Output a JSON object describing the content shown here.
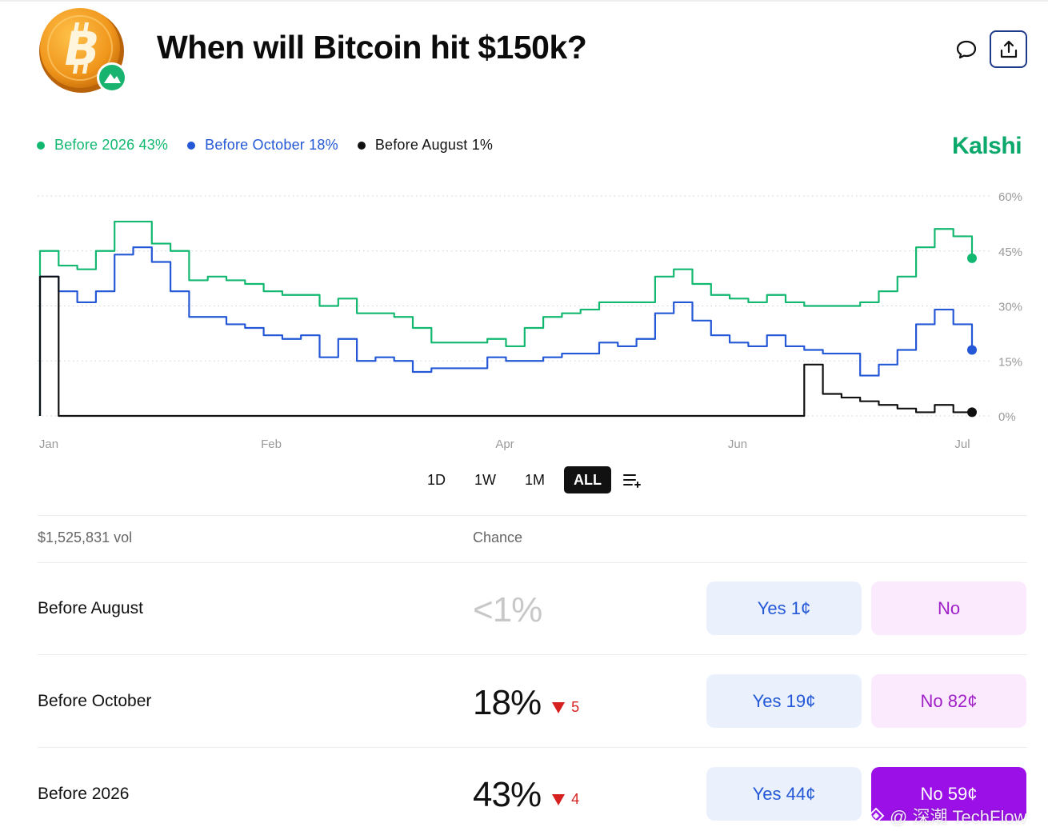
{
  "header": {
    "title": "When will Bitcoin hit $150k?",
    "logo_icon": "bitcoin-coin-icon",
    "badge_icon": "mountain-badge-icon",
    "comment_icon": "comment-bubble-icon",
    "share_icon": "share-upload-icon"
  },
  "brand": {
    "name": "Kalshi",
    "color": "#0aa86a"
  },
  "legend": [
    {
      "label": "Before 2026 43%",
      "color": "#12b870"
    },
    {
      "label": "Before October 18%",
      "color": "#2458d6"
    },
    {
      "label": "Before August 1%",
      "color": "#111111"
    }
  ],
  "chart_data": {
    "type": "line",
    "x_tick_labels": [
      "Jan",
      "Feb",
      "Apr",
      "Jun",
      "Jul"
    ],
    "y_tick_labels": [
      "60%",
      "45%",
      "30%",
      "15%",
      "0%"
    ],
    "ylim": [
      0,
      60
    ],
    "grid": "horizontal-dotted",
    "y_axis_position": "right",
    "series": [
      {
        "name": "Before 2026",
        "color": "#12b870",
        "x": [
          0,
          2,
          4,
          6,
          8,
          10,
          12,
          14,
          16,
          18,
          20,
          22,
          24,
          26,
          28,
          30,
          32,
          34,
          36,
          38,
          40,
          42,
          44,
          46,
          48,
          50,
          52,
          54,
          56,
          58,
          60,
          62,
          64,
          66,
          68,
          70,
          72,
          74,
          76,
          78,
          80,
          82,
          84,
          86,
          88,
          90,
          92,
          94,
          96,
          98,
          100
        ],
        "values": [
          45,
          41,
          40,
          45,
          53,
          53,
          47,
          45,
          37,
          38,
          37,
          36,
          34,
          33,
          33,
          30,
          32,
          28,
          28,
          27,
          24,
          20,
          20,
          20,
          21,
          19,
          24,
          27,
          28,
          29,
          31,
          31,
          31,
          38,
          40,
          36,
          33,
          32,
          31,
          33,
          31,
          30,
          30,
          30,
          31,
          34,
          38,
          46,
          51,
          49,
          43
        ]
      },
      {
        "name": "Before October",
        "color": "#2458d6",
        "x": [
          0,
          2,
          4,
          6,
          8,
          10,
          12,
          14,
          16,
          18,
          20,
          22,
          24,
          26,
          28,
          30,
          32,
          34,
          36,
          38,
          40,
          42,
          44,
          46,
          48,
          50,
          52,
          54,
          56,
          58,
          60,
          62,
          64,
          66,
          68,
          70,
          72,
          74,
          76,
          78,
          80,
          82,
          84,
          86,
          88,
          90,
          92,
          94,
          96,
          98,
          100
        ],
        "values": [
          38,
          34,
          31,
          34,
          44,
          46,
          42,
          34,
          27,
          27,
          25,
          24,
          22,
          21,
          22,
          16,
          21,
          15,
          16,
          15,
          12,
          13,
          13,
          13,
          16,
          15,
          15,
          16,
          17,
          17,
          20,
          19,
          21,
          28,
          31,
          26,
          22,
          20,
          19,
          22,
          19,
          18,
          17,
          17,
          11,
          14,
          18,
          25,
          29,
          25,
          18
        ]
      },
      {
        "name": "Before August",
        "color": "#111111",
        "x": [
          0,
          2,
          4,
          6,
          8,
          10,
          12,
          14,
          16,
          18,
          20,
          22,
          24,
          26,
          28,
          30,
          32,
          34,
          36,
          38,
          40,
          42,
          44,
          46,
          48,
          50,
          52,
          54,
          56,
          58,
          60,
          62,
          64,
          66,
          68,
          70,
          72,
          74,
          76,
          78,
          80,
          82,
          84,
          86,
          88,
          90,
          92,
          94,
          96,
          98,
          100
        ],
        "values": [
          38,
          0,
          0,
          0,
          0,
          0,
          0,
          0,
          0,
          0,
          0,
          0,
          0,
          0,
          0,
          0,
          0,
          0,
          0,
          0,
          0,
          0,
          0,
          0,
          0,
          0,
          0,
          0,
          0,
          0,
          0,
          0,
          0,
          0,
          0,
          0,
          0,
          0,
          0,
          0,
          0,
          14,
          6,
          5,
          4,
          3,
          2,
          1,
          3,
          1,
          1
        ]
      }
    ]
  },
  "ranges": {
    "options": [
      "1D",
      "1W",
      "1M",
      "ALL"
    ],
    "active": "ALL",
    "filter_icon": "list-add-icon"
  },
  "table": {
    "volume": "$1,525,831 vol",
    "chance_header": "Chance",
    "rows": [
      {
        "label": "Before August",
        "chance": "<1%",
        "delta": "",
        "yes": "Yes 1¢",
        "no": "No"
      },
      {
        "label": "Before October",
        "chance": "18%",
        "delta": "5",
        "yes": "Yes 19¢",
        "no": "No 82¢"
      },
      {
        "label": "Before 2026",
        "chance": "43%",
        "delta": "4",
        "yes": "Yes 44¢",
        "no": "No 59¢"
      }
    ]
  },
  "watermark": {
    "text": "@ 深潮 TechFlow",
    "icon": "diamond-logo-icon"
  }
}
